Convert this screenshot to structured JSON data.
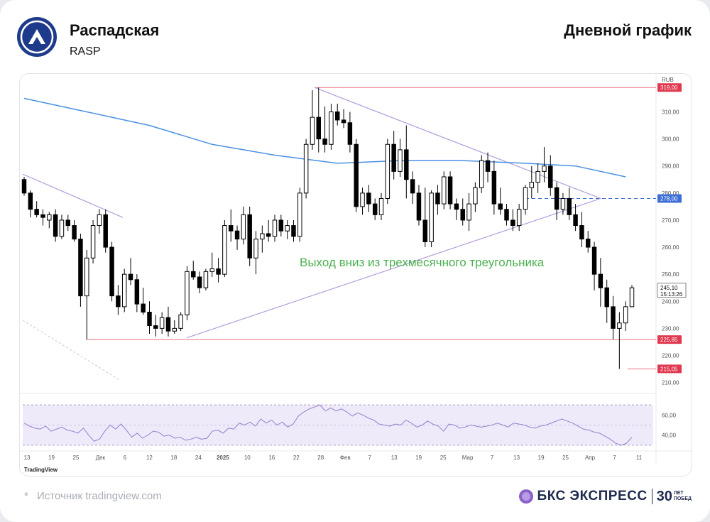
{
  "header": {
    "company": "Распадская",
    "ticker": "RASP",
    "chart_title": "Дневной график"
  },
  "footer": {
    "source": "Источник tradingview.com",
    "source_prefix": "*",
    "brand_name": "БКС ЭКСПРЕСС",
    "brand_years": "30",
    "brand_years_caption_1": "ЛЕТ",
    "brand_years_caption_2": "ПОБЕД"
  },
  "colors": {
    "up_candle": "#ffffff",
    "down_candle": "#000000",
    "ma_line": "#4a90e2",
    "triangle": "#b39ddb",
    "level_line": "#e57385",
    "level_label_bg": "#e0384f",
    "dashed_level": "#3d6fd6",
    "annotation": "#4caf50",
    "rsi_line": "#9c88d0",
    "rsi_band": "#efeafa"
  },
  "chart_data": {
    "type": "candlestick",
    "currency": "RUB",
    "ylim": [
      207,
      323
    ],
    "y_ticks": [
      "210,00",
      "220,00",
      "230,00",
      "240,00",
      "250,00",
      "260,00",
      "270,00",
      "280,00",
      "290,00",
      "300,00",
      "310,00"
    ],
    "x_ticks": [
      "13",
      "19",
      "25",
      "Дек",
      "6",
      "12",
      "18",
      "24",
      "2025",
      "10",
      "16",
      "22",
      "28",
      "Фев",
      "7",
      "13",
      "19",
      "25",
      "Мар",
      "7",
      "13",
      "19",
      "25",
      "Апр",
      "7",
      "11"
    ],
    "price_labels": [
      {
        "value": 319.0,
        "text": "319,00",
        "style": "red"
      },
      {
        "value": 278.0,
        "text": "278,00",
        "style": "blue"
      },
      {
        "value": 225.85,
        "text": "225,85",
        "style": "red"
      },
      {
        "value": 215.05,
        "text": "215,05",
        "style": "red"
      }
    ],
    "last_price": {
      "value": 245.1,
      "text": "245,10",
      "time": "15:13:26"
    },
    "annotation": "Выход вниз из трехмесячного треугольника",
    "rsi": {
      "ylim": [
        25,
        80
      ],
      "y_ticks": [
        "60,00",
        "40,00"
      ],
      "band": [
        30,
        70
      ],
      "values": [
        52,
        49,
        47,
        46,
        49,
        44,
        46,
        48,
        45,
        44,
        42,
        47,
        40,
        34,
        36,
        44,
        50,
        46,
        51,
        45,
        38,
        42,
        37,
        40,
        44,
        43,
        39,
        40,
        37,
        38,
        35,
        36,
        38,
        36,
        37,
        44,
        45,
        42,
        47,
        46,
        52,
        50,
        53,
        49,
        56,
        52,
        55,
        50,
        53,
        48,
        51,
        59,
        63,
        66,
        68,
        70,
        64,
        67,
        64,
        66,
        63,
        59,
        62,
        60,
        57,
        55,
        51,
        50,
        49,
        51,
        50,
        55,
        52,
        48,
        50,
        54,
        51,
        49,
        44,
        51,
        50,
        47,
        48,
        50,
        49,
        48,
        49,
        50,
        52,
        50,
        48,
        52,
        51,
        50,
        48,
        47,
        49,
        50,
        52,
        54,
        56,
        54,
        52,
        49,
        46,
        45,
        43,
        42,
        39,
        36,
        32,
        30,
        32,
        38
      ]
    },
    "candles": [
      [
        285,
        286,
        279,
        280
      ],
      [
        280,
        281,
        271,
        274
      ],
      [
        274,
        277,
        271,
        272
      ],
      [
        272,
        274,
        268,
        271
      ],
      [
        270,
        273,
        267,
        272
      ],
      [
        272,
        274,
        262,
        264
      ],
      [
        264,
        272,
        263,
        270
      ],
      [
        270,
        272,
        266,
        268
      ],
      [
        268,
        270,
        262,
        263
      ],
      [
        263,
        265,
        238,
        242
      ],
      [
        242,
        259,
        226,
        256
      ],
      [
        256,
        270,
        254,
        268
      ],
      [
        268,
        274,
        265,
        272
      ],
      [
        272,
        274,
        258,
        260
      ],
      [
        260,
        262,
        240,
        242
      ],
      [
        242,
        246,
        235,
        238
      ],
      [
        238,
        252,
        236,
        250
      ],
      [
        250,
        256,
        246,
        248
      ],
      [
        248,
        250,
        236,
        239
      ],
      [
        239,
        245,
        235,
        236
      ],
      [
        236,
        240,
        228,
        231
      ],
      [
        231,
        235,
        227,
        230
      ],
      [
        230,
        236,
        228,
        234
      ],
      [
        234,
        238,
        227,
        229
      ],
      [
        229,
        233,
        228,
        230
      ],
      [
        230,
        236,
        229,
        235
      ],
      [
        235,
        253,
        233,
        251
      ],
      [
        251,
        255,
        248,
        249
      ],
      [
        249,
        251,
        243,
        245
      ],
      [
        245,
        252,
        244,
        251
      ],
      [
        251,
        258,
        249,
        252
      ],
      [
        252,
        256,
        247,
        250
      ],
      [
        250,
        270,
        249,
        268
      ],
      [
        268,
        274,
        262,
        266
      ],
      [
        266,
        268,
        259,
        263
      ],
      [
        263,
        275,
        261,
        272
      ],
      [
        272,
        275,
        253,
        256
      ],
      [
        256,
        266,
        250,
        263
      ],
      [
        263,
        268,
        258,
        265
      ],
      [
        265,
        270,
        262,
        264
      ],
      [
        264,
        272,
        262,
        270
      ],
      [
        270,
        272,
        264,
        266
      ],
      [
        266,
        270,
        263,
        268
      ],
      [
        268,
        270,
        262,
        264
      ],
      [
        264,
        282,
        262,
        280
      ],
      [
        280,
        300,
        278,
        298
      ],
      [
        298,
        318,
        296,
        308
      ],
      [
        308,
        319,
        295,
        300
      ],
      [
        300,
        312,
        295,
        298
      ],
      [
        298,
        313,
        296,
        310
      ],
      [
        310,
        313,
        305,
        307
      ],
      [
        307,
        311,
        304,
        306
      ],
      [
        306,
        310,
        295,
        298
      ],
      [
        298,
        300,
        273,
        275
      ],
      [
        275,
        282,
        272,
        280
      ],
      [
        280,
        283,
        273,
        276
      ],
      [
        276,
        278,
        270,
        272
      ],
      [
        272,
        280,
        270,
        278
      ],
      [
        278,
        300,
        276,
        298
      ],
      [
        298,
        303,
        285,
        288
      ],
      [
        288,
        300,
        286,
        296
      ],
      [
        296,
        305,
        278,
        285
      ],
      [
        285,
        288,
        276,
        280
      ],
      [
        280,
        283,
        268,
        270
      ],
      [
        270,
        282,
        260,
        262
      ],
      [
        262,
        281,
        260,
        280
      ],
      [
        280,
        283,
        272,
        276
      ],
      [
        276,
        288,
        274,
        286
      ],
      [
        286,
        288,
        274,
        276
      ],
      [
        276,
        278,
        270,
        274
      ],
      [
        274,
        278,
        268,
        270
      ],
      [
        270,
        280,
        266,
        276
      ],
      [
        276,
        284,
        273,
        282
      ],
      [
        282,
        294,
        280,
        292
      ],
      [
        292,
        295,
        284,
        288
      ],
      [
        288,
        292,
        272,
        276
      ],
      [
        276,
        282,
        272,
        274
      ],
      [
        274,
        276,
        268,
        270
      ],
      [
        270,
        274,
        266,
        268
      ],
      [
        268,
        276,
        266,
        274
      ],
      [
        274,
        283,
        272,
        282
      ],
      [
        282,
        290,
        278,
        284
      ],
      [
        284,
        291,
        280,
        288
      ],
      [
        288,
        297,
        284,
        290
      ],
      [
        290,
        294,
        279,
        282
      ],
      [
        282,
        284,
        270,
        274
      ],
      [
        274,
        280,
        272,
        278
      ],
      [
        278,
        282,
        270,
        272
      ],
      [
        272,
        276,
        266,
        268
      ],
      [
        268,
        273,
        260,
        263
      ],
      [
        263,
        266,
        258,
        260
      ],
      [
        260,
        262,
        244,
        250
      ],
      [
        250,
        256,
        238,
        245
      ],
      [
        245,
        248,
        232,
        238
      ],
      [
        238,
        242,
        226,
        230
      ],
      [
        230,
        236,
        215,
        232
      ],
      [
        232,
        240,
        229,
        238
      ],
      [
        238,
        246,
        238,
        245
      ]
    ],
    "ma": [
      [
        0,
        315
      ],
      [
        10,
        310
      ],
      [
        20,
        305
      ],
      [
        30,
        298
      ],
      [
        40,
        294
      ],
      [
        50,
        291
      ],
      [
        60,
        292
      ],
      [
        70,
        292
      ],
      [
        80,
        291
      ],
      [
        88,
        290
      ],
      [
        96,
        286
      ]
    ]
  }
}
